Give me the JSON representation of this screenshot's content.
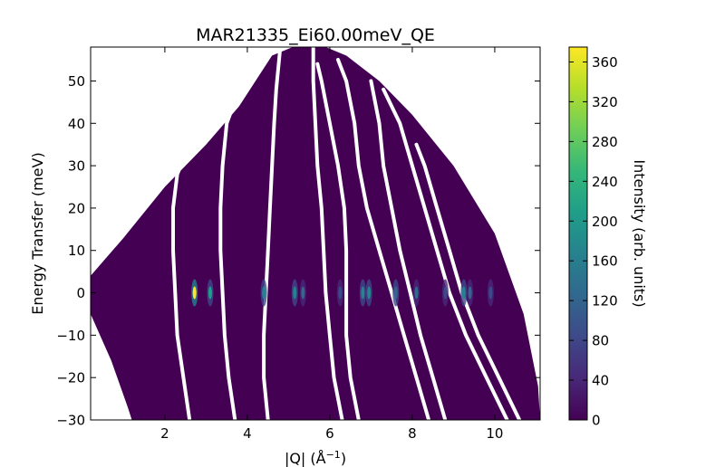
{
  "chart_data": {
    "type": "heatmap",
    "title": "MAR21335_Ei60.00meV_QE",
    "xlabel": "|Q| (Å⁻¹)",
    "xlabel_main": "|Q| (Å",
    "xlabel_sup": "−1",
    "xlabel_end": ")",
    "ylabel": "Energy Transfer (meV)",
    "colorbar_label": "Intensity (arb. units)",
    "xlim": [
      0.2,
      11.1
    ],
    "ylim": [
      -30,
      58
    ],
    "clim": [
      0,
      375
    ],
    "x_ticks": [
      2,
      4,
      6,
      8,
      10
    ],
    "x_tick_labels": [
      "2",
      "4",
      "6",
      "8",
      "10"
    ],
    "y_ticks": [
      -30,
      -20,
      -10,
      0,
      10,
      20,
      30,
      40,
      50
    ],
    "y_tick_labels": [
      "−30",
      "−20",
      "−10",
      "0",
      "10",
      "20",
      "30",
      "40",
      "50"
    ],
    "colorbar_ticks": [
      0,
      40,
      80,
      120,
      160,
      200,
      240,
      280,
      320,
      360
    ],
    "colorbar_tick_labels": [
      "0",
      "40",
      "80",
      "120",
      "160",
      "200",
      "240",
      "280",
      "320",
      "360"
    ],
    "colormap": [
      "#440154",
      "#482878",
      "#3e4989",
      "#31688e",
      "#26828e",
      "#1f9e89",
      "#35b779",
      "#6ece58",
      "#b5de2b",
      "#fde725"
    ],
    "background_color": "#440154",
    "coverage": {
      "left_edge": [
        [
          0.2,
          -1
        ],
        [
          0.2,
          4
        ],
        [
          1.0,
          13
        ],
        [
          2.0,
          25
        ],
        [
          3.0,
          35
        ],
        [
          3.8,
          44
        ],
        [
          4.4,
          53
        ],
        [
          4.6,
          56
        ],
        [
          5.1,
          58
        ]
      ],
      "top_right_edge": [
        [
          5.9,
          58
        ],
        [
          6.4,
          56
        ],
        [
          7.2,
          50
        ],
        [
          8.0,
          42
        ],
        [
          9.0,
          30
        ],
        [
          10.0,
          14
        ],
        [
          10.7,
          -5
        ],
        [
          11.05,
          -22
        ],
        [
          11.1,
          -30
        ]
      ],
      "bottom_left_edge": [
        [
          0.2,
          -1
        ],
        [
          0.2,
          -5
        ],
        [
          0.7,
          -16
        ],
        [
          1.1,
          -27
        ],
        [
          1.2,
          -30
        ]
      ]
    },
    "detector_gaps": [
      [
        [
          2.6,
          -30
        ],
        [
          2.45,
          -20
        ],
        [
          2.3,
          -10
        ],
        [
          2.25,
          0
        ],
        [
          2.2,
          10
        ],
        [
          2.2,
          20
        ],
        [
          2.3,
          28
        ],
        [
          2.6,
          35
        ],
        [
          3.2,
          43
        ],
        [
          3.6,
          47
        ]
      ],
      [
        [
          3.7,
          -30
        ],
        [
          3.55,
          -20
        ],
        [
          3.45,
          -10
        ],
        [
          3.4,
          0
        ],
        [
          3.35,
          10
        ],
        [
          3.35,
          20
        ],
        [
          3.4,
          30
        ],
        [
          3.5,
          40
        ],
        [
          3.8,
          48
        ],
        [
          4.0,
          52
        ]
      ],
      [
        [
          4.5,
          -30
        ],
        [
          4.4,
          -20
        ],
        [
          4.4,
          -10
        ],
        [
          4.45,
          0
        ],
        [
          4.5,
          10
        ],
        [
          4.55,
          20
        ],
        [
          4.6,
          30
        ],
        [
          4.65,
          40
        ],
        [
          4.7,
          48
        ],
        [
          4.8,
          58
        ]
      ],
      [
        [
          6.3,
          -30
        ],
        [
          6.1,
          -20
        ],
        [
          6.0,
          -10
        ],
        [
          5.9,
          0
        ],
        [
          5.85,
          10
        ],
        [
          5.8,
          20
        ],
        [
          5.7,
          30
        ],
        [
          5.65,
          40
        ],
        [
          5.6,
          50
        ],
        [
          5.6,
          58
        ]
      ],
      [
        [
          6.7,
          -30
        ],
        [
          6.5,
          -20
        ],
        [
          6.4,
          -10
        ],
        [
          6.4,
          0
        ],
        [
          6.4,
          10
        ],
        [
          6.35,
          20
        ],
        [
          6.2,
          30
        ],
        [
          6.0,
          40
        ],
        [
          5.8,
          50
        ],
        [
          5.7,
          54
        ]
      ],
      [
        [
          8.4,
          -30
        ],
        [
          8.1,
          -20
        ],
        [
          7.8,
          -10
        ],
        [
          7.5,
          0
        ],
        [
          7.2,
          10
        ],
        [
          6.9,
          20
        ],
        [
          6.7,
          30
        ],
        [
          6.6,
          40
        ],
        [
          6.4,
          50
        ],
        [
          6.2,
          55
        ]
      ],
      [
        [
          8.8,
          -30
        ],
        [
          8.5,
          -20
        ],
        [
          8.2,
          -10
        ],
        [
          7.95,
          0
        ],
        [
          7.7,
          10
        ],
        [
          7.5,
          20
        ],
        [
          7.3,
          30
        ],
        [
          7.2,
          40
        ],
        [
          7.0,
          50
        ]
      ],
      [
        [
          10.3,
          -30
        ],
        [
          9.8,
          -20
        ],
        [
          9.3,
          -10
        ],
        [
          8.9,
          0
        ],
        [
          8.6,
          10
        ],
        [
          8.3,
          20
        ],
        [
          8.0,
          30
        ],
        [
          7.7,
          40
        ],
        [
          7.3,
          48
        ]
      ],
      [
        [
          10.6,
          -30
        ],
        [
          10.1,
          -20
        ],
        [
          9.6,
          -10
        ],
        [
          9.2,
          0
        ],
        [
          8.9,
          10
        ],
        [
          8.6,
          20
        ],
        [
          8.3,
          30
        ],
        [
          8.1,
          35
        ]
      ]
    ],
    "bragg_peaks": [
      {
        "q": 2.72,
        "e": 0,
        "intensity": 370
      },
      {
        "q": 3.1,
        "e": 0,
        "intensity": 200
      },
      {
        "q": 4.4,
        "e": 0,
        "intensity": 160
      },
      {
        "q": 5.15,
        "e": 0,
        "intensity": 180
      },
      {
        "q": 5.35,
        "e": 0,
        "intensity": 120
      },
      {
        "q": 6.25,
        "e": 0,
        "intensity": 70
      },
      {
        "q": 6.8,
        "e": 0,
        "intensity": 150
      },
      {
        "q": 6.95,
        "e": 0,
        "intensity": 150
      },
      {
        "q": 7.6,
        "e": 0,
        "intensity": 140
      },
      {
        "q": 8.1,
        "e": 0,
        "intensity": 120
      },
      {
        "q": 8.8,
        "e": 0,
        "intensity": 70
      },
      {
        "q": 9.25,
        "e": 0,
        "intensity": 150
      },
      {
        "q": 9.4,
        "e": 0,
        "intensity": 110
      },
      {
        "q": 9.9,
        "e": 0,
        "intensity": 70
      }
    ]
  }
}
